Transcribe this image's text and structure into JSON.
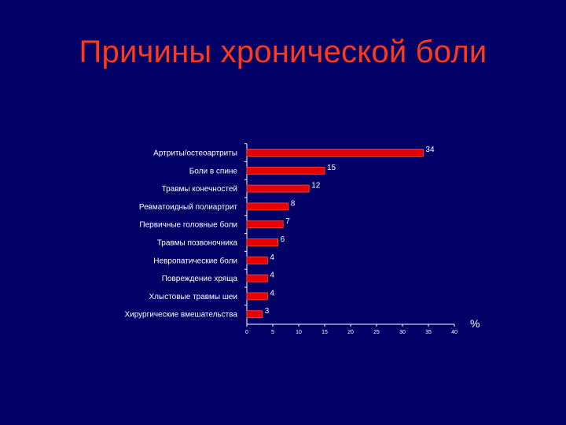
{
  "title": "Причины хронической боли",
  "colors": {
    "background": "#000066",
    "title": "#ff3a1a",
    "bar": "#e60000",
    "bar_edge": "#ff4a3a",
    "text": "#ffffff",
    "axis": "#ffffff"
  },
  "chart_data": {
    "type": "bar",
    "orientation": "horizontal",
    "title": "",
    "xlabel": "%",
    "ylabel": "",
    "xlim": [
      0,
      40
    ],
    "x_ticks": [
      0,
      5,
      10,
      15,
      20,
      25,
      30,
      35,
      40
    ],
    "categories": [
      "Артриты/остеоартриты",
      "Боли в спине",
      "Травмы конечностей",
      "Ревматоидный полиартрит",
      "Первичные головные боли",
      "Травмы позвоночника",
      "Невропатические боли",
      "Повреждение хряща",
      "Хлыстовые травмы шеи",
      "Хирургические вмешательства"
    ],
    "values": [
      34,
      15,
      12,
      8,
      7,
      6,
      4,
      4,
      4,
      3
    ],
    "legend": "none",
    "grid": false
  }
}
